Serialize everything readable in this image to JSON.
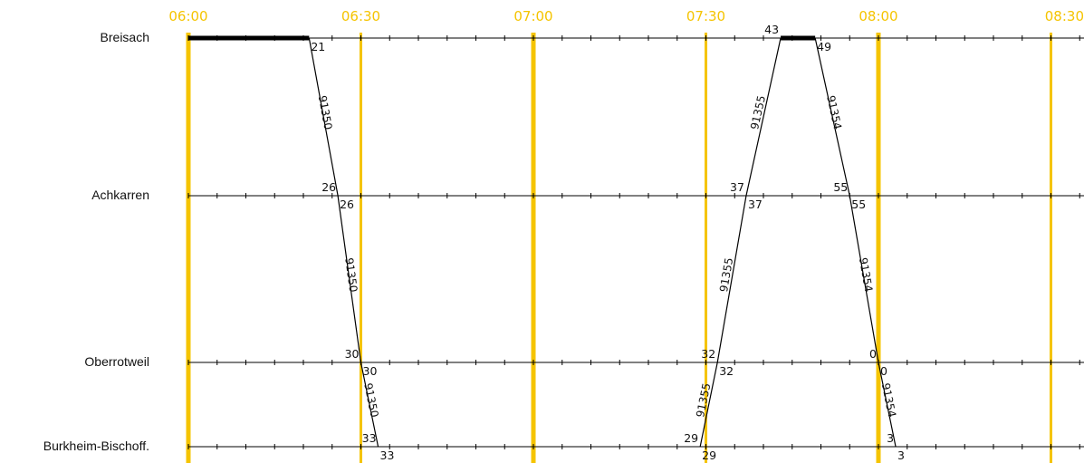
{
  "colors": {
    "background": "#ffffff",
    "time_label": "#f5c400",
    "hour_line": "#f5c400",
    "station_line": "#000000",
    "train_line": "#000000",
    "text": "#111111"
  },
  "time_axis": {
    "start": "06:00",
    "end": "08:30",
    "labels": [
      "06:00",
      "06:30",
      "07:00",
      "07:30",
      "08:00",
      "08:30"
    ],
    "major_every_minutes": 60,
    "tick_every_minutes": 5
  },
  "stations": [
    {
      "id": "breisach",
      "name": "Breisach"
    },
    {
      "id": "achkarren",
      "name": "Achkarren"
    },
    {
      "id": "oberrotweil",
      "name": "Oberrotweil"
    },
    {
      "id": "burkheim",
      "name": "Burkheim-Bischoff."
    }
  ],
  "dwells": [
    {
      "station": "breisach",
      "from": "06:00",
      "to": "06:21"
    },
    {
      "station": "breisach",
      "from": "07:43",
      "to": "07:49"
    }
  ],
  "trains": [
    {
      "number": "91350",
      "stops": [
        {
          "station": "breisach",
          "dep": "06:21",
          "dep_label": "21"
        },
        {
          "station": "achkarren",
          "arr": "06:26",
          "dep": "06:26",
          "arr_label": "26",
          "dep_label": "26"
        },
        {
          "station": "oberrotweil",
          "arr": "06:30",
          "dep": "06:30",
          "arr_label": "30",
          "dep_label": "30"
        },
        {
          "station": "burkheim",
          "arr": "06:33",
          "dep": "06:33",
          "arr_label": "33",
          "dep_label": "33"
        }
      ]
    },
    {
      "number": "91355",
      "stops": [
        {
          "station": "burkheim",
          "dep": "07:29",
          "dep_label": "29",
          "arr_label": "29"
        },
        {
          "station": "oberrotweil",
          "arr": "07:32",
          "dep": "07:32",
          "arr_label": "32",
          "dep_label": "32"
        },
        {
          "station": "achkarren",
          "arr": "07:37",
          "dep": "07:37",
          "arr_label": "37",
          "dep_label": "37"
        },
        {
          "station": "breisach",
          "arr": "07:43",
          "arr_label": "43"
        }
      ]
    },
    {
      "number": "91354",
      "stops": [
        {
          "station": "breisach",
          "dep": "07:49",
          "dep_label": "49"
        },
        {
          "station": "achkarren",
          "arr": "07:55",
          "dep": "07:55",
          "arr_label": "55",
          "dep_label": "55"
        },
        {
          "station": "oberrotweil",
          "arr": "08:00",
          "dep": "08:00",
          "arr_label": "0",
          "dep_label": "0"
        },
        {
          "station": "burkheim",
          "arr": "08:03",
          "dep": "08:03",
          "arr_label": "3",
          "dep_label": "3"
        }
      ]
    }
  ]
}
